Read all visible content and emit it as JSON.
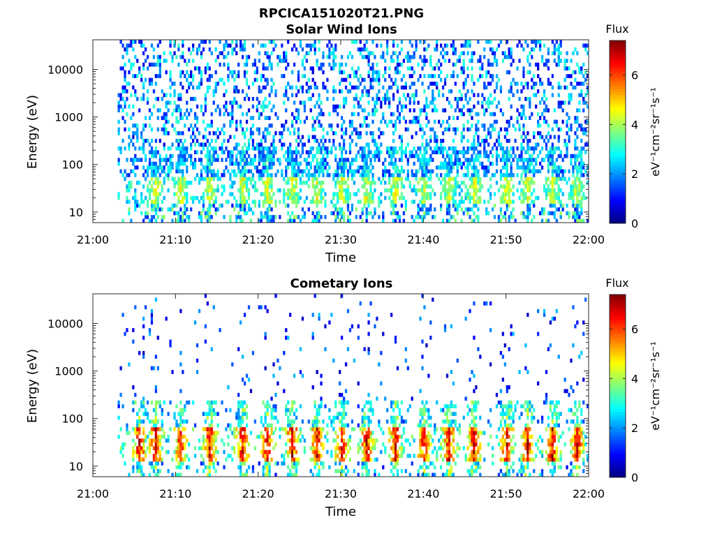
{
  "figure": {
    "title": "RPCICA151020T21.PNG"
  },
  "colormap": [
    "#00007f",
    "#0000ff",
    "#007fff",
    "#00ffff",
    "#7fff7f",
    "#ffff00",
    "#ff7f00",
    "#ff0000",
    "#7f0000"
  ],
  "chart_data": [
    {
      "type": "heatmap",
      "title": "Solar Wind Ions",
      "xlabel": "Time",
      "ylabel": "Energy (eV)",
      "x_ticks": [
        "21:00",
        "21:10",
        "21:20",
        "21:30",
        "21:40",
        "21:50",
        "22:00"
      ],
      "x_range_minutes": [
        0,
        60
      ],
      "y_scale": "log",
      "y_ticks": [
        "10",
        "100",
        "1000",
        "10000"
      ],
      "y_range_eV": [
        6,
        42000
      ],
      "colorbar": {
        "label": "Flux",
        "units": "eV⁻¹cm⁻²sr⁻¹s⁻¹",
        "ticks": [
          "0",
          "2",
          "4",
          "6"
        ],
        "range": [
          0,
          7.4
        ]
      },
      "data_start_minute": 3,
      "pulse_minutes": [
        7.5,
        10.5,
        14,
        18,
        21,
        24,
        27,
        30,
        33,
        36.5,
        40,
        43,
        46,
        50,
        52.5,
        55.5,
        58.5
      ],
      "description_levels": {
        "high_energy_sparse_band_eV": [
          300,
          40000
        ],
        "low_energy_enhancement_eV": [
          15,
          60
        ],
        "typical_flux": 2,
        "peak_flux": 4.5
      }
    },
    {
      "type": "heatmap",
      "title": "Cometary Ions",
      "xlabel": "Time",
      "ylabel": "Energy (eV)",
      "x_ticks": [
        "21:00",
        "21:10",
        "21:20",
        "21:30",
        "21:40",
        "21:50",
        "22:00"
      ],
      "x_range_minutes": [
        0,
        60
      ],
      "y_scale": "log",
      "y_ticks": [
        "10",
        "100",
        "1000",
        "10000"
      ],
      "y_range_eV": [
        6,
        42000
      ],
      "colorbar": {
        "label": "Flux",
        "units": "eV⁻¹cm⁻²sr⁻¹s⁻¹",
        "ticks": [
          "0",
          "2",
          "4",
          "6"
        ],
        "range": [
          0,
          7.4
        ]
      },
      "data_start_minute": 3,
      "pulse_minutes": [
        5.5,
        7.5,
        10.5,
        14,
        18,
        21,
        24,
        27,
        30,
        33,
        36.5,
        40,
        43,
        46,
        50,
        52.5,
        55.5,
        58.5
      ],
      "description_levels": {
        "core_energy_eV": [
          15,
          60
        ],
        "core_peak_flux": 7,
        "sparse_high_energy_eV": [
          300,
          12000
        ]
      }
    }
  ]
}
